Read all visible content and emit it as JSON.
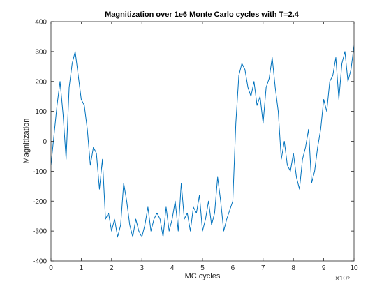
{
  "chart_data": {
    "type": "line",
    "title": "Magnitization over 1e6 Monte Carlo cycles with T=2.4",
    "xlabel": "MC cycles",
    "ylabel": "Magnitization",
    "x_multiplier_label": "×10⁵",
    "xlim": [
      0,
      10
    ],
    "ylim": [
      -400,
      400
    ],
    "x_ticks": [
      0,
      1,
      2,
      3,
      4,
      5,
      6,
      7,
      8,
      9,
      10
    ],
    "x_tick_labels": [
      "0",
      "1",
      "2",
      "3",
      "4",
      "5",
      "6",
      "7",
      "8",
      "9",
      "10"
    ],
    "y_ticks": [
      -400,
      -300,
      -200,
      -100,
      0,
      100,
      200,
      300,
      400
    ],
    "y_tick_labels": [
      "-400",
      "-300",
      "-200",
      "-100",
      "0",
      "100",
      "200",
      "300",
      "400"
    ],
    "grid": false,
    "line_color": "#0072BD",
    "series": [
      {
        "x": [
          0,
          0.1,
          0.2,
          0.3,
          0.4,
          0.5,
          0.6,
          0.7,
          0.8,
          0.9,
          1.0,
          1.1,
          1.2,
          1.3,
          1.4,
          1.5,
          1.6,
          1.7,
          1.8,
          1.9,
          2.0,
          2.1,
          2.2,
          2.3,
          2.4,
          2.5,
          2.6,
          2.7,
          2.8,
          2.9,
          3.0,
          3.1,
          3.2,
          3.3,
          3.4,
          3.5,
          3.6,
          3.7,
          3.8,
          3.9,
          4.0,
          4.1,
          4.2,
          4.3,
          4.4,
          4.5,
          4.6,
          4.7,
          4.8,
          4.9,
          5.0,
          5.1,
          5.2,
          5.3,
          5.4,
          5.5,
          5.6,
          5.7,
          5.8,
          5.9,
          6.0,
          6.1,
          6.2,
          6.3,
          6.4,
          6.5,
          6.6,
          6.7,
          6.8,
          6.9,
          7.0,
          7.1,
          7.2,
          7.3,
          7.4,
          7.5,
          7.6,
          7.7,
          7.8,
          7.9,
          8.0,
          8.1,
          8.2,
          8.3,
          8.4,
          8.5,
          8.6,
          8.7,
          8.8,
          8.9,
          9.0,
          9.1,
          9.2,
          9.3,
          9.4,
          9.5,
          9.6,
          9.7,
          9.8,
          9.9,
          10.0
        ],
        "y": [
          -80,
          20,
          120,
          200,
          90,
          -60,
          180,
          260,
          300,
          220,
          140,
          120,
          40,
          -80,
          -20,
          -40,
          -160,
          -60,
          -260,
          -240,
          -300,
          -260,
          -320,
          -280,
          -140,
          -200,
          -280,
          -320,
          -260,
          -300,
          -320,
          -280,
          -220,
          -300,
          -260,
          -240,
          -260,
          -320,
          -220,
          -300,
          -260,
          -200,
          -300,
          -140,
          -260,
          -240,
          -300,
          -220,
          -240,
          -180,
          -300,
          -260,
          -200,
          -280,
          -240,
          -120,
          -200,
          -300,
          -260,
          -230,
          -200,
          60,
          220,
          260,
          240,
          180,
          150,
          200,
          120,
          150,
          60,
          180,
          210,
          280,
          180,
          100,
          -60,
          0,
          -80,
          -100,
          -40,
          -120,
          -160,
          -60,
          -20,
          40,
          -140,
          -100,
          -20,
          40,
          140,
          100,
          200,
          220,
          280,
          140,
          260,
          300,
          200,
          240,
          320
        ]
      }
    ]
  }
}
